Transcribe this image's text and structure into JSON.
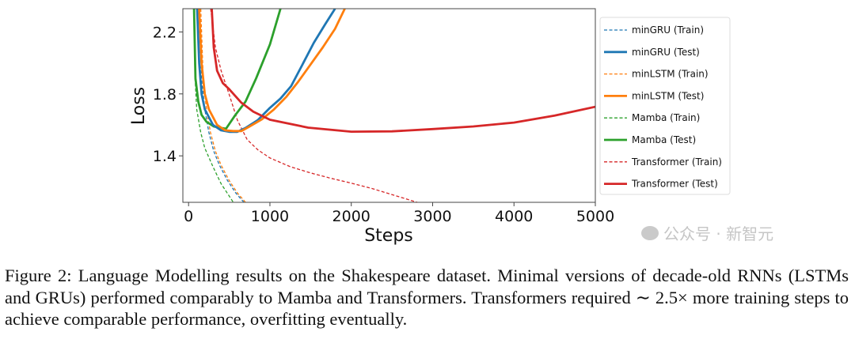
{
  "chart_data": {
    "type": "line",
    "title": "",
    "xlabel": "Steps",
    "ylabel": "Loss",
    "xlim": [
      -70,
      5000
    ],
    "ylim": [
      1.1,
      2.35
    ],
    "xticks": [
      0,
      1000,
      2000,
      3000,
      4000,
      5000
    ],
    "yticks": [
      1.4,
      1.8,
      2.2
    ],
    "grid": false,
    "legend_placement": "outside-right",
    "series": [
      {
        "name": "minGRU (Train)",
        "color": "#1f77b4",
        "style": "dashed",
        "x": [
          130,
          160,
          200,
          250,
          310,
          380,
          480,
          580,
          680
        ],
        "y": [
          2.35,
          1.9,
          1.7,
          1.55,
          1.43,
          1.34,
          1.24,
          1.16,
          1.1
        ]
      },
      {
        "name": "minGRU (Test)",
        "color": "#1f77b4",
        "style": "solid",
        "x": [
          105,
          130,
          160,
          200,
          300,
          400,
          500,
          600,
          700,
          850,
          1000,
          1130,
          1260,
          1400,
          1540,
          1680,
          1800
        ],
        "y": [
          2.35,
          2.0,
          1.8,
          1.7,
          1.6,
          1.565,
          1.555,
          1.555,
          1.58,
          1.63,
          1.71,
          1.77,
          1.85,
          1.99,
          2.13,
          2.25,
          2.35
        ]
      },
      {
        "name": "minLSTM (Train)",
        "color": "#ff7f0e",
        "style": "dashed",
        "x": [
          150,
          180,
          220,
          270,
          330,
          400,
          500,
          600,
          700
        ],
        "y": [
          2.35,
          1.9,
          1.7,
          1.55,
          1.43,
          1.34,
          1.24,
          1.16,
          1.1
        ]
      },
      {
        "name": "minLSTM (Test)",
        "color": "#ff7f0e",
        "style": "solid",
        "x": [
          130,
          160,
          200,
          250,
          350,
          450,
          550,
          650,
          750,
          900,
          1050,
          1200,
          1350,
          1500,
          1650,
          1800,
          1920
        ],
        "y": [
          2.35,
          2.0,
          1.8,
          1.7,
          1.6,
          1.565,
          1.56,
          1.56,
          1.59,
          1.635,
          1.7,
          1.78,
          1.88,
          1.99,
          2.1,
          2.22,
          2.35
        ]
      },
      {
        "name": "Mamba (Train)",
        "color": "#2ca02c",
        "style": "dashed",
        "x": [
          70,
          80,
          100,
          150,
          200,
          300,
          400,
          500,
          550
        ],
        "y": [
          2.2,
          1.9,
          1.7,
          1.55,
          1.45,
          1.33,
          1.22,
          1.14,
          1.1
        ]
      },
      {
        "name": "Mamba (Test)",
        "color": "#2ca02c",
        "style": "solid",
        "x": [
          67,
          85,
          120,
          160,
          220,
          310,
          400,
          460,
          570,
          700,
          830,
          1000,
          1130
        ],
        "y": [
          2.35,
          1.9,
          1.75,
          1.665,
          1.62,
          1.59,
          1.58,
          1.575,
          1.66,
          1.75,
          1.9,
          2.12,
          2.35
        ]
      },
      {
        "name": "Transformer (Train)",
        "color": "#d62728",
        "style": "dashed",
        "x": [
          272,
          330,
          400,
          500,
          600,
          720,
          850,
          1000,
          1250,
          1500,
          1750,
          2000,
          2250,
          2500,
          2810
        ],
        "y": [
          2.35,
          2.1,
          1.95,
          1.795,
          1.63,
          1.505,
          1.44,
          1.386,
          1.33,
          1.29,
          1.255,
          1.224,
          1.19,
          1.15,
          1.1
        ]
      },
      {
        "name": "Transformer (Test)",
        "color": "#d62728",
        "style": "solid",
        "x": [
          285,
          310,
          350,
          420,
          500,
          645,
          795,
          1000,
          1470,
          2000,
          2500,
          3000,
          3500,
          4000,
          4500,
          5000
        ],
        "y": [
          2.35,
          2.1,
          1.95,
          1.87,
          1.83,
          1.745,
          1.685,
          1.633,
          1.582,
          1.556,
          1.558,
          1.573,
          1.59,
          1.615,
          1.66,
          1.717
        ]
      }
    ]
  },
  "caption": "Figure 2: Language Modelling results on the Shakespeare dataset.  Minimal versions of decade-old RNNs (LSTMs and GRUs) performed comparably to Mamba and Transformers. Transformers required ∼ 2.5× more training steps to achieve comparable performance, overfitting eventually.",
  "watermark": "公众号 · 新智元"
}
